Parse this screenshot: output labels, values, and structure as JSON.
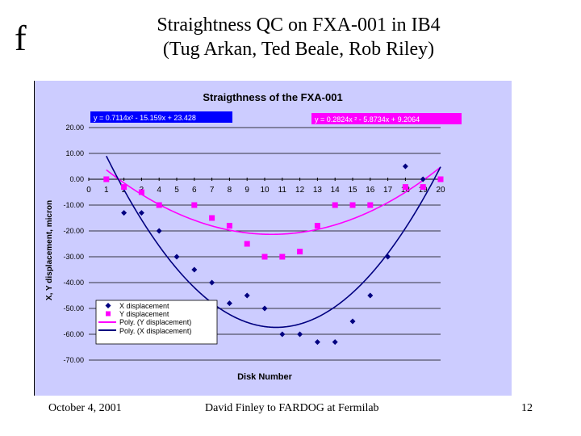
{
  "slide": {
    "logo_letter": "f",
    "title_line1": "Straightness QC on FXA-001 in IB4",
    "title_line2": "(Tug Arkan, Ted Beale, Rob Riley)",
    "footer_left": "October 4, 2001",
    "footer_center": "David Finley to FARDOG at Fermilab",
    "footer_right": "12"
  },
  "colors": {
    "plot_background": "#ccccff",
    "x_series": "#000080",
    "y_series": "#ff00ff",
    "x_equation_box": "#0000ff",
    "y_equation_box": "#ff00ff"
  },
  "chart_data": {
    "type": "scatter",
    "title": "Straigthness of the FXA-001",
    "xlabel": "Disk Number",
    "ylabel": "X, Y displacement, micron",
    "xlim": [
      0,
      20
    ],
    "ylim": [
      -70,
      20
    ],
    "x_ticks": [
      "0",
      "1",
      "2",
      "3",
      "4",
      "5",
      "6",
      "7",
      "8",
      "9",
      "10",
      "11",
      "12",
      "13",
      "14",
      "15",
      "16",
      "17",
      "18",
      "19",
      "20"
    ],
    "y_ticks": [
      "20.00",
      "10.00",
      "0.00",
      "-10.00",
      "-20.00",
      "-30.00",
      "-40.00",
      "-50.00",
      "-60.00",
      "-70.00"
    ],
    "grid": true,
    "legend_position": "bottom-left",
    "legend": [
      "X displacement",
      "Y displacement",
      "Poly. (Y displacement)",
      "Poly. (X displacement)"
    ],
    "equations": {
      "x_fit": "y = 0.7114x² - 15.159x + 23.428",
      "y_fit": "y = 0.2824x  ² - 5.8734x + 9.2064"
    },
    "series": [
      {
        "name": "X displacement",
        "marker": "diamond",
        "x": [
          2,
          3,
          4,
          5,
          6,
          7,
          8,
          9,
          10,
          11,
          12,
          13,
          14,
          15,
          16,
          17,
          18,
          19
        ],
        "y": [
          -13,
          -13,
          -20,
          -30,
          -35,
          -40,
          -48,
          -45,
          -50,
          -60,
          -60,
          -63,
          -63,
          -55,
          -45,
          -30,
          5,
          0
        ]
      },
      {
        "name": "Y displacement",
        "marker": "square",
        "x": [
          1,
          2,
          3,
          4,
          6,
          7,
          8,
          9,
          10,
          11,
          12,
          13,
          14,
          15,
          16,
          18,
          19,
          20
        ],
        "y": [
          0,
          -3,
          -5,
          -10,
          -10,
          -15,
          -18,
          -25,
          -30,
          -30,
          -28,
          -18,
          -10,
          -10,
          -10,
          -3,
          -3,
          0
        ]
      },
      {
        "name": "Poly. (Y displacement)",
        "type": "fit",
        "coefficients": [
          0.2824,
          -5.8734,
          9.2064
        ]
      },
      {
        "name": "Poly. (X displacement)",
        "type": "fit",
        "coefficients": [
          0.7114,
          -15.159,
          23.428
        ]
      }
    ]
  }
}
